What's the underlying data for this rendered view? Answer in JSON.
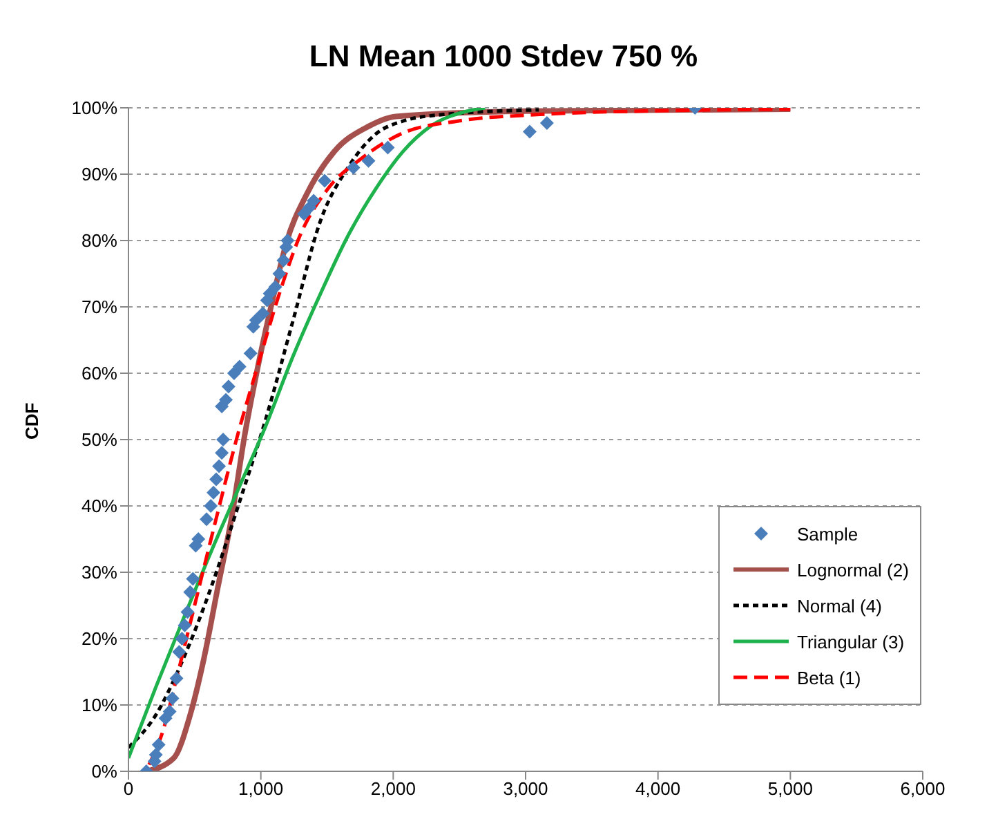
{
  "chart_data": {
    "type": "line",
    "title": "LN Mean 1000 Stdev 750 %",
    "ylabel": "CDF",
    "xlim": [
      0,
      6000
    ],
    "xticks": [
      {
        "value": 0,
        "label": "0"
      },
      {
        "value": 1000,
        "label": "1,000"
      },
      {
        "value": 2000,
        "label": "2,000"
      },
      {
        "value": 3000,
        "label": "3,000"
      },
      {
        "value": 4000,
        "label": "4,000"
      },
      {
        "value": 5000,
        "label": "5,000"
      },
      {
        "value": 6000,
        "label": "6,000"
      }
    ],
    "ylim": [
      0,
      100
    ],
    "yticks": [
      {
        "value": 0,
        "label": "0%"
      },
      {
        "value": 10,
        "label": "10%"
      },
      {
        "value": 20,
        "label": "20%"
      },
      {
        "value": 30,
        "label": "30%"
      },
      {
        "value": 40,
        "label": "40%"
      },
      {
        "value": 50,
        "label": "50%"
      },
      {
        "value": 60,
        "label": "60%"
      },
      {
        "value": 70,
        "label": "70%"
      },
      {
        "value": 80,
        "label": "80%"
      },
      {
        "value": 90,
        "label": "90%"
      },
      {
        "value": 100,
        "label": "100%"
      }
    ],
    "grid": "y",
    "legend": "right",
    "series": [
      {
        "name": "Sample",
        "type": "scatter",
        "marker": "diamond",
        "color": "#4a7ebb",
        "x": [
          135,
          197,
          207,
          228,
          280,
          311,
          332,
          363,
          383,
          404,
          425,
          446,
          466,
          487,
          508,
          528,
          590,
          622,
          642,
          663,
          684,
          705,
          715,
          705,
          736,
          756,
          798,
          839,
          922,
          943,
          964,
          1015,
          1047,
          1067,
          1109,
          1140,
          1171,
          1192,
          1202,
          1326,
          1368,
          1399,
          1482,
          1699,
          1813,
          1959,
          3031,
          3161,
          4280
        ],
        "values": [
          0,
          1.5,
          2.5,
          4,
          8,
          9,
          11,
          14,
          18,
          20,
          22,
          24,
          27,
          29,
          34,
          35,
          38,
          40,
          42,
          44,
          46,
          48,
          50,
          55,
          56,
          58,
          60,
          61,
          63,
          67,
          68,
          69,
          71,
          72,
          73,
          75,
          77,
          79,
          80,
          84,
          85,
          86,
          89,
          91,
          92,
          94,
          96.4,
          97.7,
          100
        ]
      },
      {
        "name": "Lognormal (2)",
        "marker": "none",
        "line_style": "solid",
        "color": "#a5504d",
        "x": [
          135,
          342,
          466,
          570,
          674,
          777,
          881,
          984,
          1088,
          1192,
          1347,
          1554,
          1813,
          2021,
          3000,
          5000
        ],
        "values": [
          0,
          2,
          8.5,
          17,
          27.6,
          38,
          51,
          61.6,
          71,
          79.6,
          87,
          93.4,
          97.2,
          98.7,
          99.5,
          99.8
        ]
      },
      {
        "name": "Normal  (4)",
        "marker": "none",
        "line_style": "dotted",
        "color": "#000000",
        "x": [
          0,
          207,
          415,
          622,
          829,
          1036,
          1244,
          1451,
          1658,
          1865,
          2073,
          2383,
          3100
        ],
        "values": [
          3.6,
          8.5,
          17,
          27.6,
          40,
          53,
          68,
          83,
          91,
          96,
          98,
          99,
          99.7
        ]
      },
      {
        "name": "Triangular (3)",
        "marker": "none",
        "line_style": "solid",
        "color": "#1db24b",
        "x": [
          0,
          207,
          415,
          622,
          829,
          1036,
          1244,
          1451,
          1658,
          1865,
          2073,
          2280,
          2539,
          2694
        ],
        "values": [
          2,
          12.7,
          23,
          33,
          42.5,
          52,
          62.6,
          72,
          80.7,
          87.7,
          93.4,
          97.2,
          99.4,
          100
        ]
      },
      {
        "name": "Beta (1)",
        "marker": "none",
        "line_style": "dashed",
        "color": "#ff0000",
        "x": [
          155,
          259,
          363,
          518,
          674,
          829,
          984,
          1140,
          1295,
          1503,
          1762,
          2073,
          2487,
          3109,
          4145,
          5000
        ],
        "values": [
          1,
          6,
          14,
          26.5,
          39,
          51,
          61.6,
          72,
          80.7,
          87.7,
          92.4,
          96.2,
          98,
          99,
          99.6,
          99.8
        ]
      }
    ]
  }
}
